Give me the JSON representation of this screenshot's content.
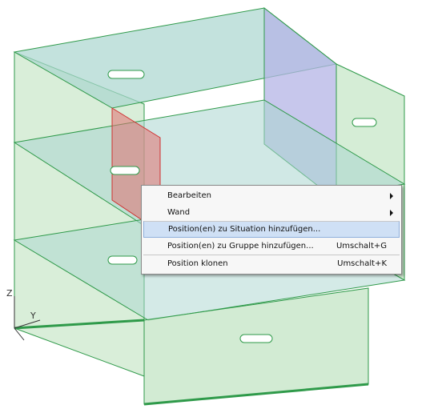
{
  "axes": {
    "z": "Z",
    "y": "Y"
  },
  "menu": {
    "items": [
      {
        "label": "Bearbeiten",
        "submenu": true
      },
      {
        "label": "Wand",
        "submenu": true
      },
      {
        "label": "Position(en) zu Situation hinzufügen...",
        "highlighted": true,
        "separator_before": true
      },
      {
        "label": "Position(en) zu Gruppe hinzufügen...",
        "shortcut": "Umschalt+G"
      },
      {
        "label": "Position klonen",
        "shortcut": "Umschalt+K",
        "separator_before": true
      }
    ]
  }
}
